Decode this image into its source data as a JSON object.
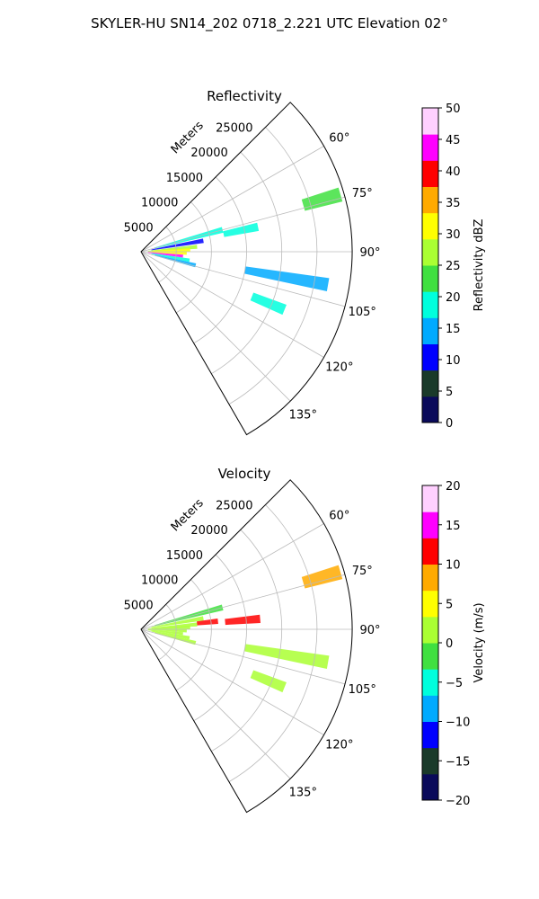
{
  "suptitle": "SKYLER-HU  SN14_202  0718_2.221 UTC Elevation 02°",
  "chart_data": [
    {
      "type": "polar-sector",
      "title": "Reflectivity",
      "range_label": "Meters",
      "theta_range_deg": [
        45,
        150
      ],
      "r_max": 30000,
      "r_ticks": [
        "5000",
        "10000",
        "15000",
        "20000",
        "25000"
      ],
      "theta_ticks": [
        "60°",
        "75°",
        "90°",
        "105°",
        "120°",
        "135°"
      ],
      "colorbar": {
        "label": "Reflectivity dBZ",
        "range": [
          0,
          50
        ],
        "ticks": [
          "0",
          "5",
          "10",
          "15",
          "20",
          "25",
          "30",
          "35",
          "40",
          "45",
          "50"
        ],
        "colors": [
          "#0a0a5a",
          "#1a3a2a",
          "#0000ff",
          "#00aaff",
          "#00ffdd",
          "#40e040",
          "#aaff33",
          "#ffff00",
          "#ffaa00",
          "#ff0000",
          "#ff00ff",
          "#ffd0ff"
        ]
      },
      "echoes": [
        {
          "theta": 75,
          "r": [
            2000,
            12000
          ],
          "value": 20
        },
        {
          "theta": 80,
          "r": [
            1500,
            9000
          ],
          "value": 12
        },
        {
          "theta": 85,
          "r": [
            1000,
            8000
          ],
          "value": 28
        },
        {
          "theta": 88,
          "r": [
            1500,
            7000
          ],
          "value": 30
        },
        {
          "theta": 92,
          "r": [
            1000,
            6500
          ],
          "value": 32
        },
        {
          "theta": 96,
          "r": [
            1000,
            6000
          ],
          "value": 42
        },
        {
          "theta": 100,
          "r": [
            1500,
            7000
          ],
          "value": 18
        },
        {
          "theta": 104,
          "r": [
            2000,
            8000
          ],
          "value": 15
        },
        {
          "theta": 78,
          "r": [
            12000,
            17000
          ],
          "value": 18
        },
        {
          "theta": 74,
          "r": [
            24000,
            29500
          ],
          "value": 22
        },
        {
          "theta": 100,
          "r": [
            15000,
            27000
          ],
          "value": 16
        },
        {
          "theta": 112,
          "r": [
            17000,
            22000
          ],
          "value": 20
        }
      ]
    },
    {
      "type": "polar-sector",
      "title": "Velocity",
      "range_label": "Meters",
      "theta_range_deg": [
        45,
        150
      ],
      "r_max": 30000,
      "r_ticks": [
        "5000",
        "10000",
        "15000",
        "20000",
        "25000"
      ],
      "theta_ticks": [
        "60°",
        "75°",
        "90°",
        "105°",
        "120°",
        "135°"
      ],
      "colorbar": {
        "label": "Velocity (m/s)",
        "range": [
          -20,
          20
        ],
        "ticks": [
          "−20",
          "−15",
          "−10",
          "−5",
          "0",
          "5",
          "10",
          "15",
          "20"
        ],
        "colors": [
          "#0a0a5a",
          "#1a3a2a",
          "#0000ff",
          "#00aaff",
          "#00ffdd",
          "#40e040",
          "#aaff33",
          "#ffff00",
          "#ffaa00",
          "#ff0000",
          "#ff00ff",
          "#ffd0ff"
        ]
      },
      "echoes": [
        {
          "theta": 75,
          "r": [
            2000,
            12000
          ],
          "value": -2
        },
        {
          "theta": 80,
          "r": [
            1500,
            9000
          ],
          "value": 0
        },
        {
          "theta": 85,
          "r": [
            1000,
            8000
          ],
          "value": 1
        },
        {
          "theta": 88,
          "r": [
            1500,
            7000
          ],
          "value": 2
        },
        {
          "theta": 92,
          "r": [
            1000,
            6500
          ],
          "value": 1
        },
        {
          "theta": 96,
          "r": [
            1000,
            6000
          ],
          "value": 0
        },
        {
          "theta": 100,
          "r": [
            1500,
            7000
          ],
          "value": 2
        },
        {
          "theta": 104,
          "r": [
            2000,
            8000
          ],
          "value": 1
        },
        {
          "theta": 84,
          "r": [
            8000,
            11000
          ],
          "value": 11
        },
        {
          "theta": 85,
          "r": [
            12000,
            17000
          ],
          "value": 12
        },
        {
          "theta": 74,
          "r": [
            24000,
            29500
          ],
          "value": 8
        },
        {
          "theta": 100,
          "r": [
            15000,
            27000
          ],
          "value": 2
        },
        {
          "theta": 112,
          "r": [
            17000,
            22000
          ],
          "value": 3
        }
      ]
    }
  ]
}
